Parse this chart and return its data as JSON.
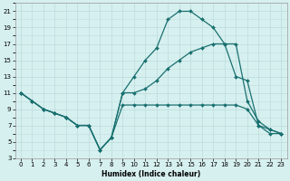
{
  "xlabel": "Humidex (Indice chaleur)",
  "background_color": "#d6f0ef",
  "grid_color": "#c0dede",
  "line_color": "#1a7070",
  "xlim": [
    -0.5,
    23.5
  ],
  "ylim": [
    3,
    22
  ],
  "yticks": [
    3,
    5,
    7,
    9,
    11,
    13,
    15,
    17,
    19,
    21
  ],
  "xticks": [
    0,
    1,
    2,
    3,
    4,
    5,
    6,
    7,
    8,
    9,
    10,
    11,
    12,
    13,
    14,
    15,
    16,
    17,
    18,
    19,
    20,
    21,
    22,
    23
  ],
  "x": [
    0,
    1,
    2,
    3,
    4,
    5,
    6,
    7,
    8,
    9,
    10,
    11,
    12,
    13,
    14,
    15,
    16,
    17,
    18,
    19,
    20,
    21,
    22,
    23
  ],
  "y_top": [
    11,
    10,
    9,
    8.5,
    8,
    7,
    7,
    4,
    5.5,
    11,
    13,
    15,
    16.5,
    20,
    21,
    21,
    20,
    19,
    17,
    13,
    12.5,
    7,
    6,
    6
  ],
  "y_mid": [
    11,
    10,
    9,
    8.5,
    8,
    7,
    7,
    4,
    5.5,
    11,
    11,
    11.5,
    12.5,
    14,
    15,
    16,
    16.5,
    17,
    17,
    17,
    10,
    7.5,
    6.5,
    6
  ],
  "y_bot": [
    11,
    10,
    9,
    8.5,
    8,
    7,
    7,
    4,
    5.5,
    9.5,
    9.5,
    9.5,
    9.5,
    9.5,
    9.5,
    9.5,
    9.5,
    9.5,
    9.5,
    9.5,
    9,
    7,
    6.5,
    6
  ]
}
